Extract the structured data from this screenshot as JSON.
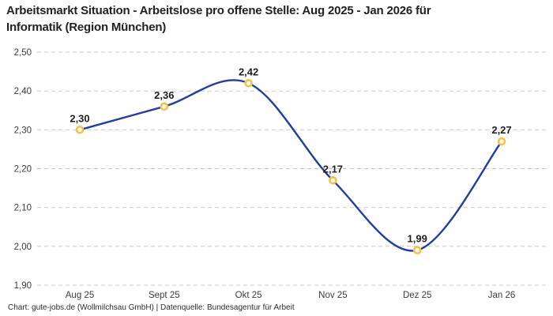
{
  "header": {
    "title_line1": "Arbeitsmarkt Situation - Arbeitslose pro offene Stelle: Aug 2025 - Jan 2026 für",
    "title_line2": "Informatik (Region München)"
  },
  "footer": {
    "credit": "Chart: gute-jobs.de (Wollmilchsau GmbH) | Datenquelle: Bundesagentur für Arbeit"
  },
  "chart_data": {
    "type": "line",
    "title": "Arbeitsmarkt Situation - Arbeitslose pro offene Stelle: Aug 2025 - Jan 2026 für Informatik (Region München)",
    "categories": [
      "Aug 25",
      "Sept 25",
      "Okt 25",
      "Nov 25",
      "Dez 25",
      "Jan 26"
    ],
    "values": [
      2.3,
      2.36,
      2.42,
      2.17,
      1.99,
      2.27
    ],
    "data_labels": [
      "2,30",
      "2,36",
      "2,42",
      "2,17",
      "1,99",
      "2,27"
    ],
    "y_ticks": [
      "2,50",
      "2,40",
      "2,30",
      "2,20",
      "2,10",
      "2,00",
      "1,90"
    ],
    "y_tick_values": [
      2.5,
      2.4,
      2.3,
      2.2,
      2.1,
      2.0,
      1.9
    ],
    "ylim": [
      1.9,
      2.5
    ],
    "xlabel": "",
    "ylabel": "",
    "legend": "none",
    "grid": "horizontal-dashed",
    "smooth": true,
    "line_color": "#233d9c",
    "marker_stroke_color": "#f6c244",
    "marker_fill_color": "#ffffff",
    "grid_color": "#c9c9c9",
    "tick_label_color": "#3c3c3c",
    "data_label_color": "#1f1f1f"
  }
}
